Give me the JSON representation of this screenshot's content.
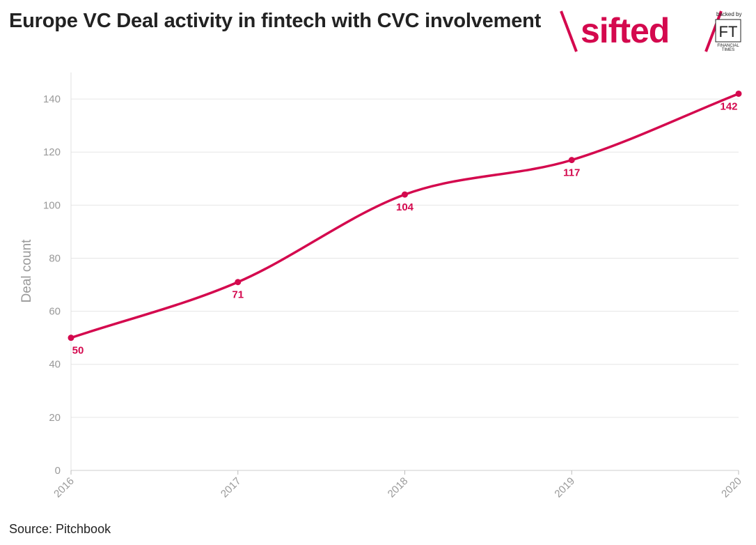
{
  "header": {
    "title": "Europe VC Deal activity in fintech with CVC involvement"
  },
  "brand": {
    "name": "sifted",
    "backed_by": "backed by",
    "ft_mark": "FT",
    "ft_name_line1": "FINANCIAL",
    "ft_name_line2": "TIMES",
    "color": "#d4094e"
  },
  "footer": {
    "source": "Source: Pitchbook"
  },
  "chart_data": {
    "type": "line",
    "title": "Europe VC Deal activity in fintech with CVC involvement",
    "xlabel": "",
    "ylabel": "Deal count",
    "categories": [
      "2016",
      "2017",
      "2018",
      "2019",
      "2020"
    ],
    "series": [
      {
        "values": [
          50,
          71,
          104,
          117,
          142
        ],
        "color": "#d4094e"
      }
    ],
    "ylim": [
      0,
      150
    ],
    "yticks": [
      0,
      20,
      40,
      60,
      80,
      100,
      120,
      140
    ],
    "grid": true,
    "data_labels": true,
    "legend": "none"
  }
}
